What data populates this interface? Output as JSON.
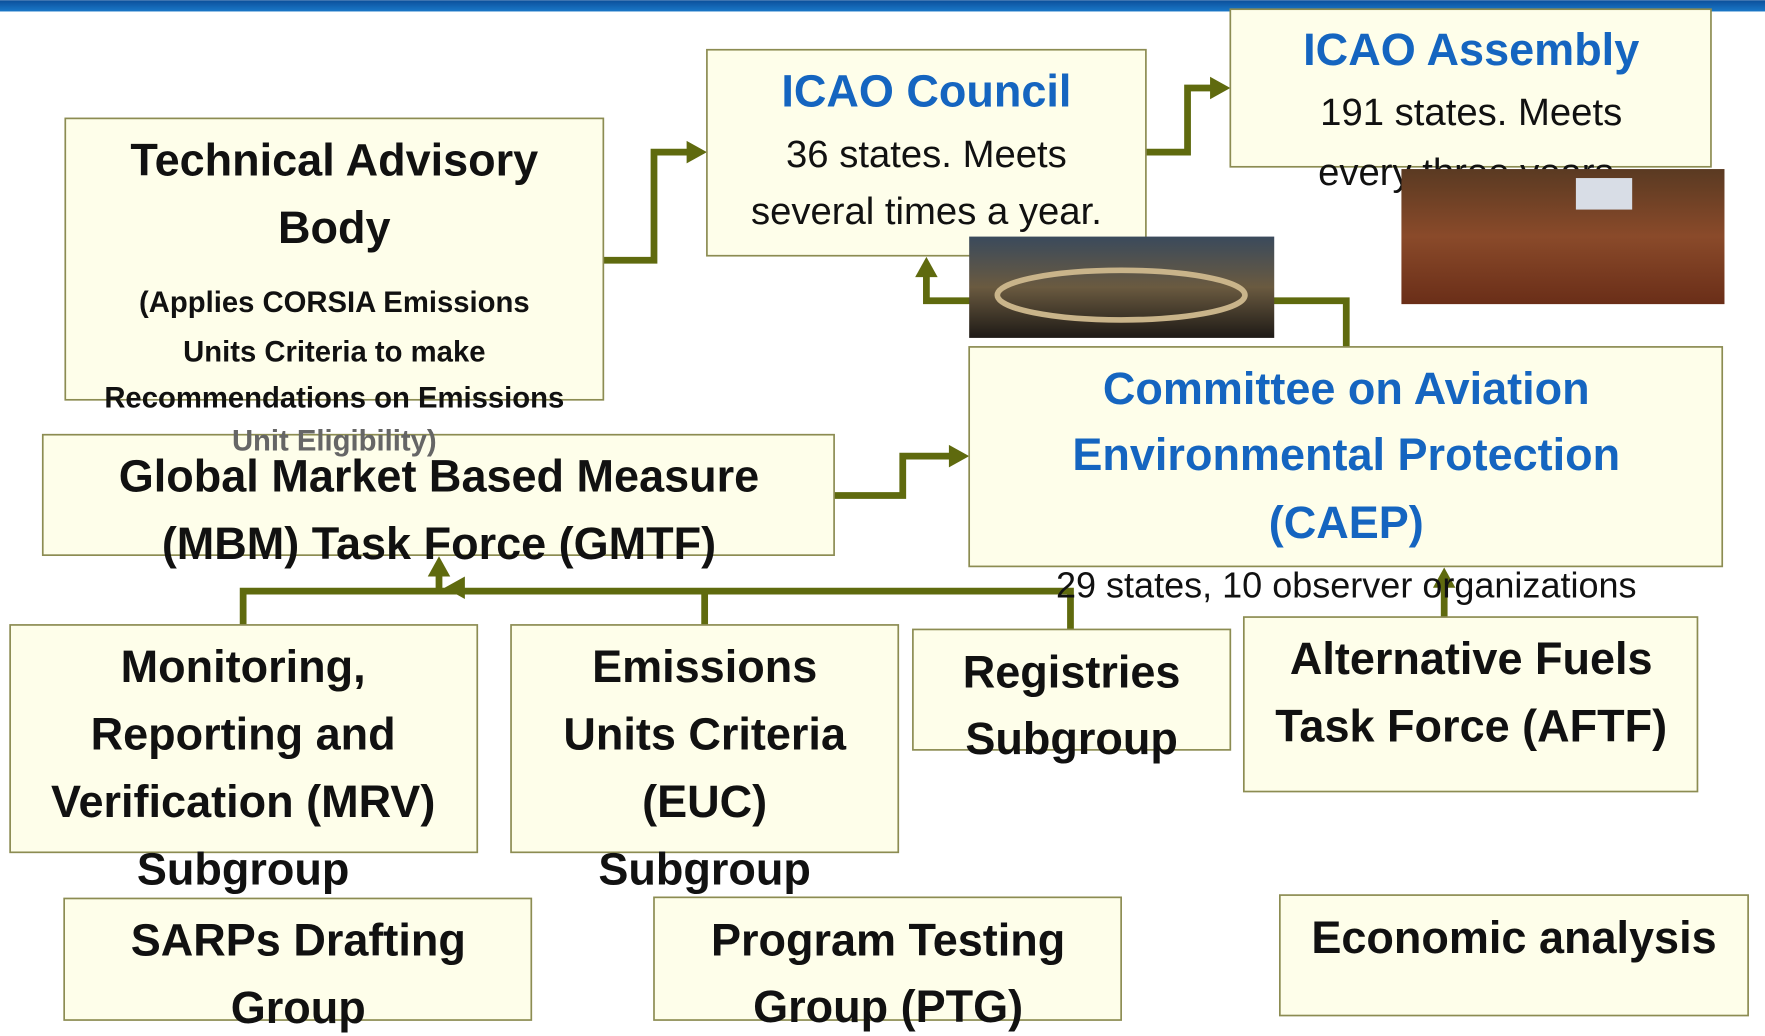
{
  "nodes": [
    {
      "title": [
        "Technical Advisory",
        "Body"
      ],
      "details": [
        "(Applies CORSIA Emissions",
        "Units Criteria to make",
        "Recommendations on Emissions",
        "Unit Eligibility)"
      ]
    },
    {
      "title": [
        "ICAO Council"
      ],
      "details": [
        "36 states.  Meets",
        "several times a year."
      ]
    },
    {
      "title": [
        "ICAO Assembly"
      ],
      "details": [
        "191 states.  Meets",
        "every three years."
      ]
    },
    {
      "title": [
        "Committee on Aviation",
        "Environmental Protection",
        "(CAEP)"
      ],
      "details": [
        "29 states, 10 observer organizations"
      ]
    },
    {
      "title": [
        "Global Market Based Measure",
        "(MBM) Task Force (GMTF)"
      ]
    },
    {
      "title": [
        "Monitoring,",
        "Reporting and",
        "Verification (MRV)",
        "Subgroup"
      ]
    },
    {
      "title": [
        "Emissions",
        "Units Criteria",
        "(EUC)",
        "Subgroup"
      ]
    },
    {
      "title": [
        "Registries",
        "Subgroup"
      ]
    },
    {
      "title": [
        "Alternative Fuels",
        "Task Force (AFTF)"
      ]
    },
    {
      "title": [
        "SARPs Drafting",
        "Group"
      ]
    },
    {
      "title": [
        "Program Testing",
        "Group (PTG)"
      ]
    },
    {
      "title": [
        "Economic analysis"
      ]
    }
  ]
}
